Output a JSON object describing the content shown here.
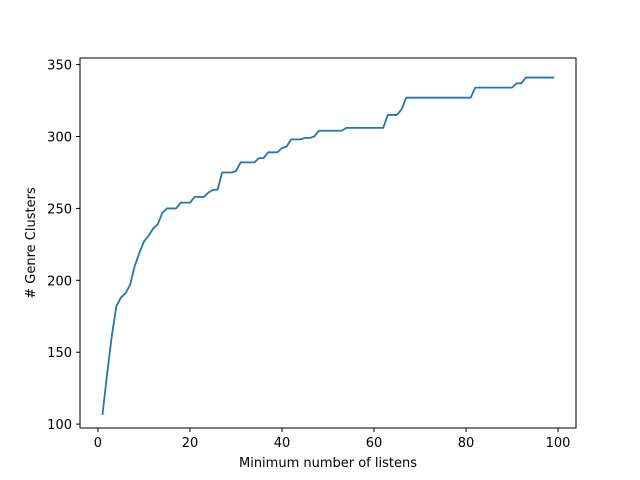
{
  "chart_data": {
    "type": "line",
    "title": "",
    "xlabel": "Minimum number of listens",
    "ylabel": "# Genre Clusters",
    "xlim": [
      -3.9,
      103.9
    ],
    "ylim": [
      97.3,
      354.6
    ],
    "xticks": [
      0,
      20,
      40,
      60,
      80,
      100
    ],
    "yticks": [
      100,
      150,
      200,
      250,
      300,
      350
    ],
    "xtick_labels": [
      "0",
      "20",
      "40",
      "60",
      "80",
      "100"
    ],
    "ytick_labels": [
      "100",
      "150",
      "200",
      "250",
      "300",
      "350"
    ],
    "grid": false,
    "legend": null,
    "series": [
      {
        "name": "genre clusters",
        "color": "#1f77b4",
        "x": [
          1,
          2,
          3,
          4,
          5,
          6,
          7,
          8,
          9,
          10,
          11,
          12,
          13,
          14,
          15,
          16,
          17,
          18,
          19,
          20,
          21,
          22,
          23,
          24,
          25,
          26,
          27,
          28,
          29,
          30,
          31,
          32,
          33,
          34,
          35,
          36,
          37,
          38,
          39,
          40,
          41,
          42,
          43,
          44,
          45,
          46,
          47,
          48,
          49,
          50,
          51,
          52,
          53,
          54,
          55,
          56,
          57,
          58,
          59,
          60,
          61,
          62,
          63,
          64,
          65,
          66,
          67,
          68,
          69,
          70,
          71,
          72,
          73,
          74,
          75,
          76,
          77,
          78,
          79,
          80,
          81,
          82,
          83,
          84,
          85,
          86,
          87,
          88,
          89,
          90,
          91,
          92,
          93,
          94,
          95,
          96,
          97,
          98,
          99
        ],
        "y": [
          107,
          135,
          161,
          182,
          188,
          191,
          197,
          210,
          219,
          227,
          231,
          236,
          239,
          247,
          250,
          250,
          250,
          254,
          254,
          254,
          258,
          258,
          258,
          261,
          263,
          263,
          275,
          275,
          275,
          276,
          282,
          282,
          282,
          282,
          285,
          285,
          289,
          289,
          289,
          292,
          293,
          298,
          298,
          298,
          299,
          299,
          300,
          304,
          304,
          304,
          304,
          304,
          304,
          306,
          306,
          306,
          306,
          306,
          306,
          306,
          306,
          306,
          315,
          315,
          315,
          319,
          327,
          327,
          327,
          327,
          327,
          327,
          327,
          327,
          327,
          327,
          327,
          327,
          327,
          327,
          327,
          334,
          334,
          334,
          334,
          334,
          334,
          334,
          334,
          334,
          337,
          337,
          341,
          341,
          341,
          341,
          341,
          341,
          341
        ]
      }
    ]
  }
}
